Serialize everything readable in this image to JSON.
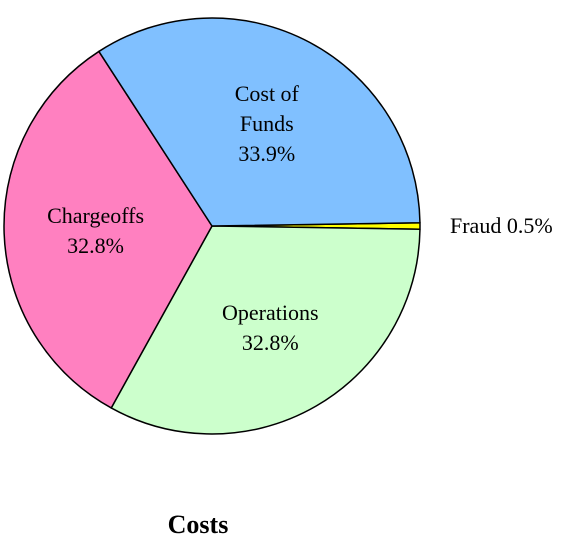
{
  "chart_data": {
    "type": "pie",
    "title": "Costs",
    "slices": [
      {
        "label": "Fraud",
        "lines": [
          "Fraud 0.5%"
        ],
        "value": 0.5,
        "color": "#ffff00",
        "label_position": "outside"
      },
      {
        "label": "Operations",
        "lines": [
          "Operations",
          "32.8%"
        ],
        "value": 32.8,
        "color": "#ccffcc",
        "label_position": "inside"
      },
      {
        "label": "Chargeoffs",
        "lines": [
          "Chargeoffs",
          "32.8%"
        ],
        "value": 32.8,
        "color": "#ff80c0",
        "label_position": "inside"
      },
      {
        "label": "Cost of Funds",
        "lines": [
          "Cost of",
          "Funds",
          "33.9%"
        ],
        "value": 33.9,
        "color": "#80c0ff",
        "label_position": "inside"
      }
    ]
  }
}
